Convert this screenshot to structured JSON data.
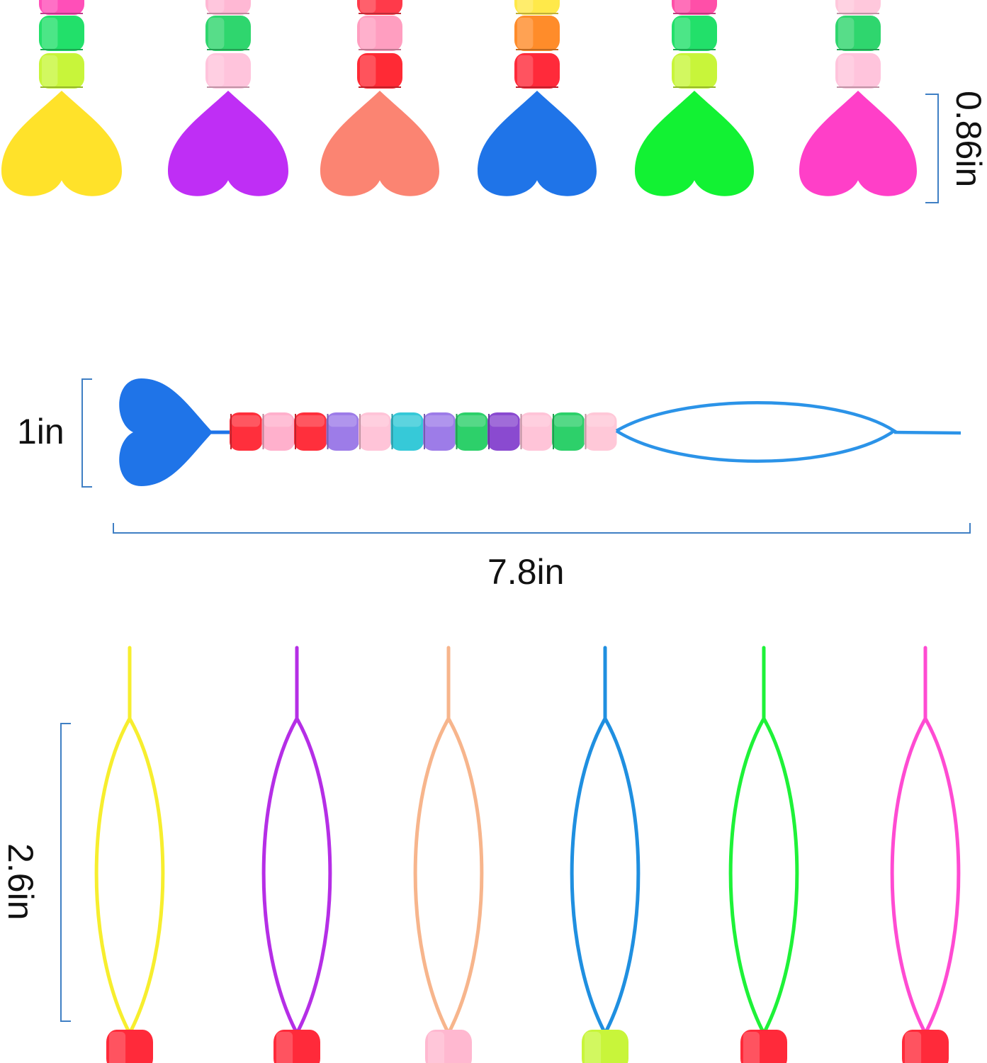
{
  "measurements": {
    "width": "7.8in",
    "height": "1in",
    "heart_height": "0.86in",
    "loop_length": "2.6in"
  },
  "colors": {
    "dimension_line": "#3f7fc4",
    "threaders": [
      "#ffe22a",
      "#bf2ef5",
      "#fb8472",
      "#1f74e8",
      "#12f233",
      "#ff3fc8"
    ],
    "loops": [
      "#f7ee2e",
      "#b52ee6",
      "#f7b58c",
      "#1f8fe0",
      "#1ef238",
      "#ff4bd2"
    ],
    "featured": "#1f74e8",
    "featured_wire": "#2b93e8"
  },
  "icons": {
    "heart": "heart-shape",
    "bead": "pony-bead",
    "loop": "wire-loop"
  }
}
